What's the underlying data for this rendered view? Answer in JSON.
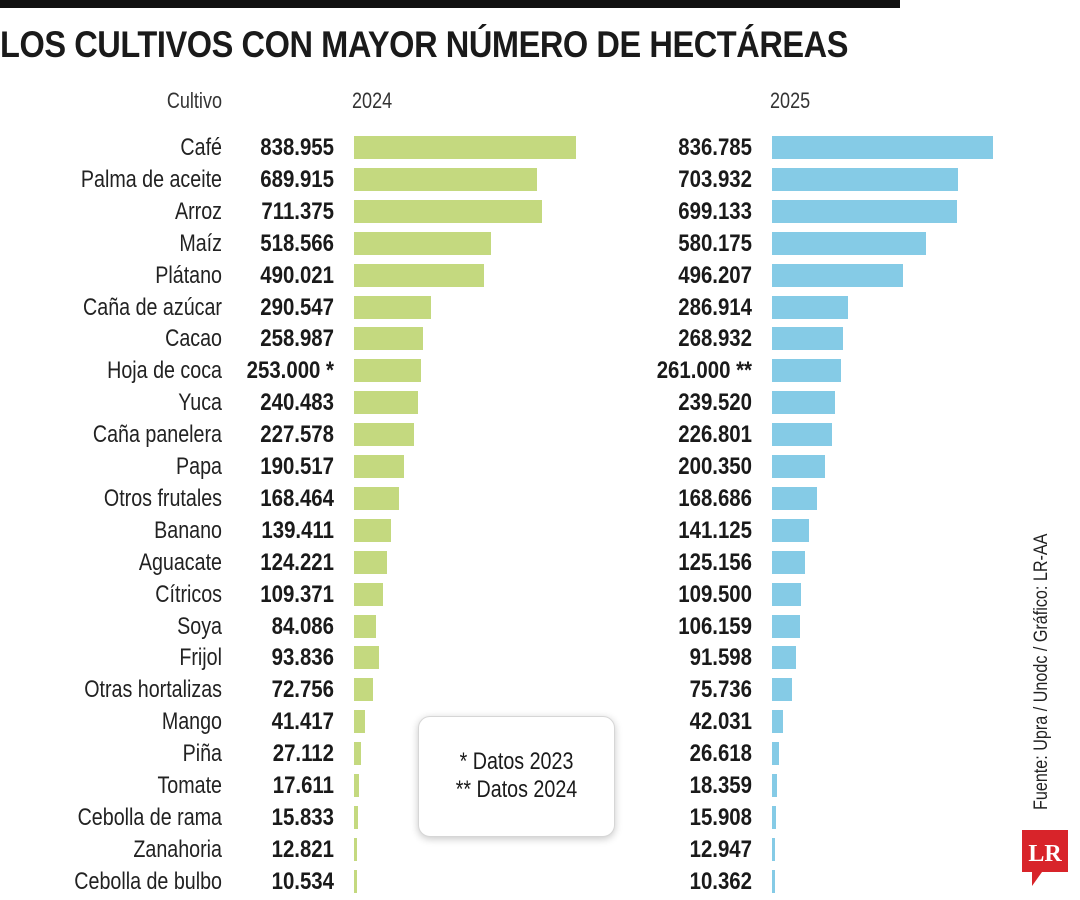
{
  "title": "LOS CULTIVOS CON MAYOR NÚMERO DE HECTÁREAS",
  "headers": {
    "cultivo": "Cultivo",
    "y2024": "2024",
    "y2025": "2025"
  },
  "note": {
    "line1": "* Datos 2023",
    "line2": "** Datos 2024"
  },
  "source": "Fuente: Upra / Unodc / Gráfico: LR-AA",
  "logo": {
    "text": "LR",
    "color": "#d8242a"
  },
  "colors": {
    "bar_2024": "#c4d97f",
    "bar_2025": "#85cbe6"
  },
  "chart_data": {
    "type": "bar",
    "orientation": "horizontal",
    "title": "LOS CULTIVOS CON MAYOR NÚMERO DE HECTÁREAS",
    "categories": [
      "Café",
      "Palma de aceite",
      "Arroz",
      "Maíz",
      "Plátano",
      "Caña de azúcar",
      "Cacao",
      "Hoja de coca",
      "Yuca",
      "Caña panelera",
      "Papa",
      "Otros frutales",
      "Banano",
      "Aguacate",
      "Cítricos",
      "Soya",
      "Frijol",
      "Otras hortalizas",
      "Mango",
      "Piña",
      "Tomate",
      "Cebolla de rama",
      "Zanahoria",
      "Cebolla de bulbo"
    ],
    "series": [
      {
        "name": "2024",
        "values": [
          838955,
          689915,
          711375,
          518566,
          490021,
          290547,
          258987,
          253000,
          240483,
          227578,
          190517,
          168464,
          139411,
          124221,
          109371,
          84086,
          93836,
          72756,
          41417,
          27112,
          17611,
          15833,
          12821,
          10534
        ],
        "labels": [
          "838.955",
          "689.915",
          "711.375",
          "518.566",
          "490.021",
          "290.547",
          "258.987",
          "253.000 *",
          "240.483",
          "227.578",
          "190.517",
          "168.464",
          "139.411",
          "124.221",
          "109.371",
          "84.086",
          "93.836",
          "72.756",
          "41.417",
          "27.112",
          "17.611",
          "15.833",
          "12.821",
          "10.534"
        ]
      },
      {
        "name": "2025",
        "values": [
          836785,
          703932,
          699133,
          580175,
          496207,
          286914,
          268932,
          261000,
          239520,
          226801,
          200350,
          168686,
          141125,
          125156,
          109500,
          106159,
          91598,
          75736,
          42031,
          26618,
          18359,
          15908,
          12947,
          10362
        ],
        "labels": [
          "836.785",
          "703.932",
          "699.133",
          "580.175",
          "496.207",
          "286.914",
          "268.932",
          "261.000 **",
          "239.520",
          "226.801",
          "200.350",
          "168.686",
          "141.125",
          "125.156",
          "109.500",
          "106.159",
          "91.598",
          "75.736",
          "42.031",
          "26.618",
          "18.359",
          "15.908",
          "12.947",
          "10.362"
        ]
      }
    ]
  }
}
